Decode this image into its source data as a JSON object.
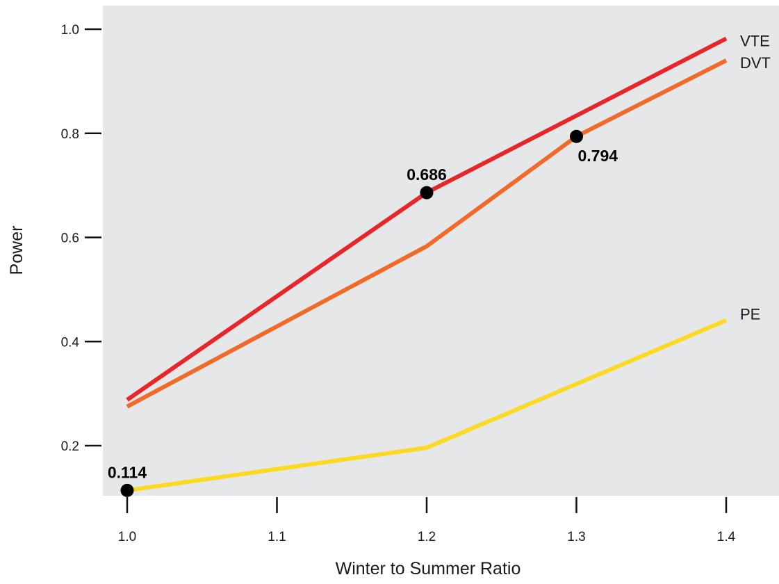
{
  "chart_data": {
    "type": "line",
    "title": "",
    "xlabel": "Winter to Summer Ratio",
    "ylabel": "Power",
    "x": [
      1.0,
      1.2,
      1.3,
      1.4
    ],
    "xticks": [
      {
        "value": 1.0,
        "label": "1.0"
      },
      {
        "value": 1.1,
        "label": "1.1"
      },
      {
        "value": 1.2,
        "label": "1.2"
      },
      {
        "value": 1.3,
        "label": "1.3"
      },
      {
        "value": 1.4,
        "label": "1.4"
      }
    ],
    "yticks": [
      {
        "value": 0.2,
        "label": "0.2"
      },
      {
        "value": 0.4,
        "label": "0.4"
      },
      {
        "value": 0.6,
        "label": "0.6"
      },
      {
        "value": 0.8,
        "label": "0.8"
      },
      {
        "value": 1.0,
        "label": "1.0"
      }
    ],
    "xlim": [
      0.95,
      1.43
    ],
    "ylim": [
      0.08,
      1.05
    ],
    "grid": false,
    "background_color": "#e6e7e8",
    "series": [
      {
        "name": "VTE",
        "color": "#e8262a",
        "points": [
          [
            1.0,
            0.288
          ],
          [
            1.2,
            0.686
          ],
          [
            1.4,
            0.982
          ]
        ]
      },
      {
        "name": "DVT",
        "color": "#f06a2a",
        "points": [
          [
            1.0,
            0.275
          ],
          [
            1.2,
            0.583
          ],
          [
            1.3,
            0.794
          ],
          [
            1.4,
            0.94
          ]
        ]
      },
      {
        "name": "PE",
        "color": "#fcd922",
        "points": [
          [
            1.0,
            0.114
          ],
          [
            1.2,
            0.196
          ],
          [
            1.4,
            0.441
          ]
        ]
      }
    ],
    "highlighted_points": [
      {
        "x": 1.2,
        "y": 0.686,
        "label": "0.686",
        "label_position": "above"
      },
      {
        "x": 1.3,
        "y": 0.794,
        "label": "0.794",
        "label_position": "below-right"
      },
      {
        "x": 1.0,
        "y": 0.114,
        "label": "0.114",
        "label_position": "above"
      }
    ]
  }
}
